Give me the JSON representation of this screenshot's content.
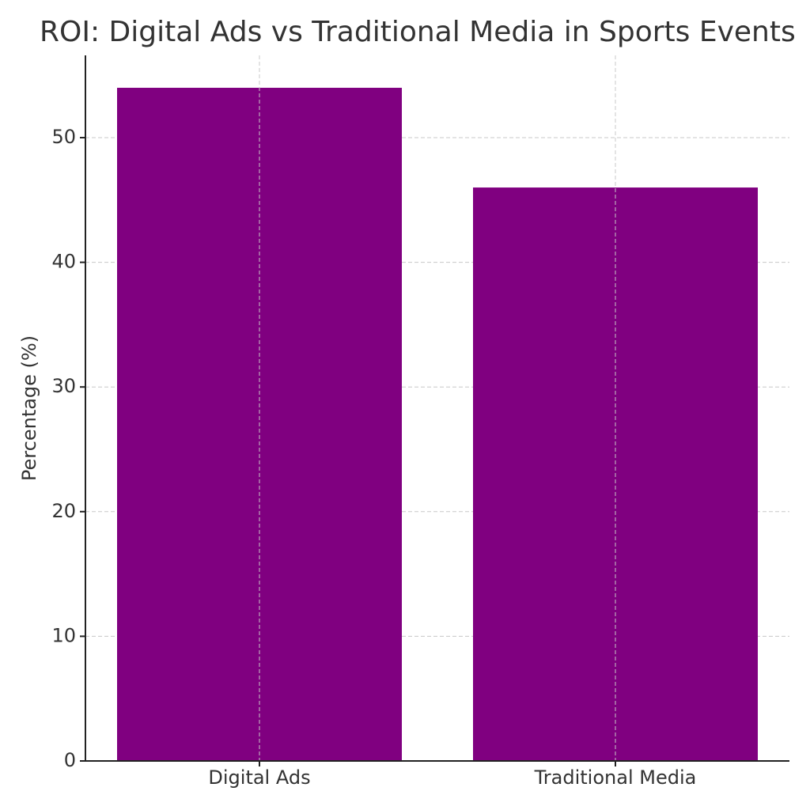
{
  "chart_data": {
    "type": "bar",
    "title": "ROI: Digital Ads vs Traditional Media in Sports Events",
    "y_label": "Percentage (%)",
    "categories": [
      "Digital Ads",
      "Traditional Media"
    ],
    "values": [
      54,
      46
    ],
    "color": "#800080",
    "ylim": [
      0,
      56.6
    ],
    "yticks": [
      0,
      10,
      20,
      30,
      40,
      50
    ],
    "grid": true
  }
}
